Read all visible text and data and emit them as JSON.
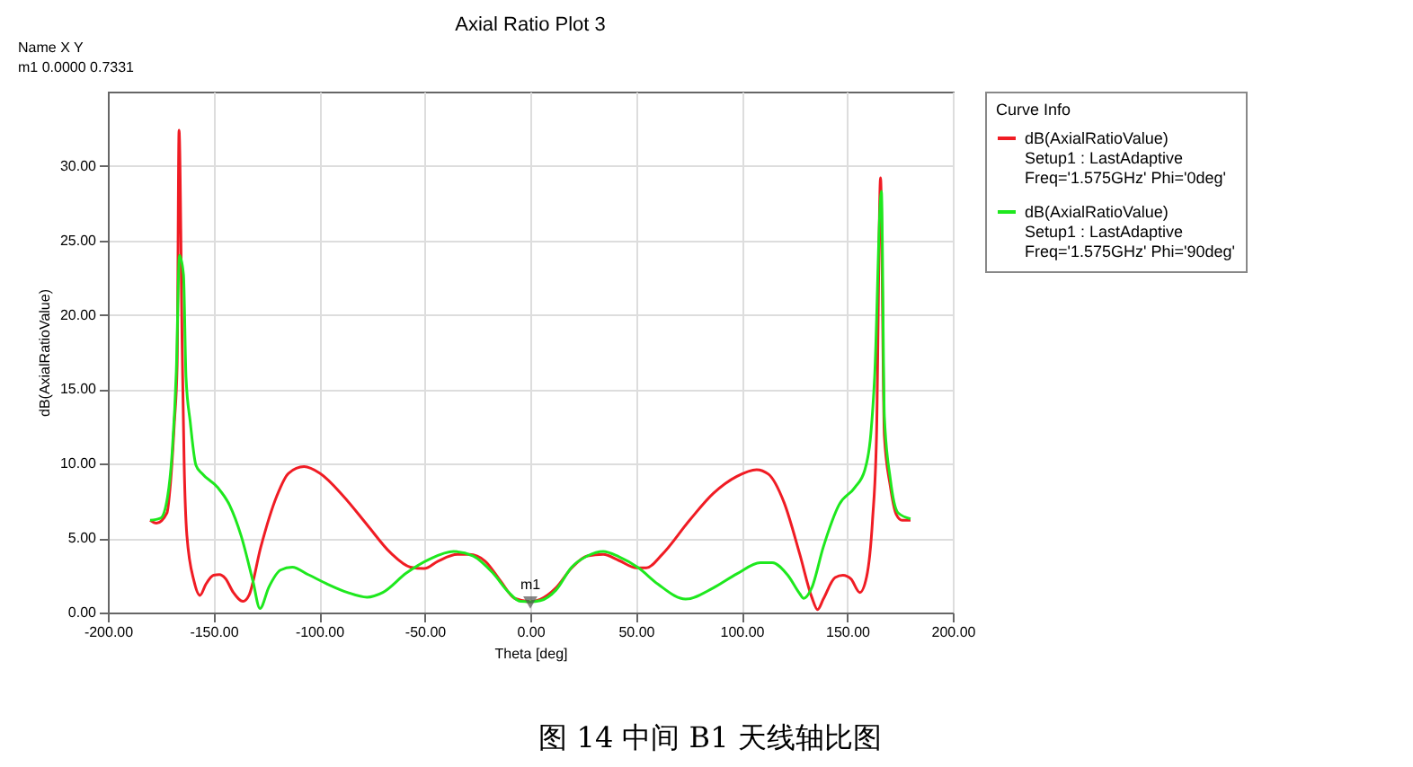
{
  "chart_data": {
    "type": "line",
    "title": "Axial Ratio Plot 3",
    "xlabel": "Theta [deg]",
    "ylabel": "dB(AxialRatioValue)",
    "xlim": [
      -200,
      200
    ],
    "ylim": [
      0,
      35
    ],
    "xticks": [
      {
        "value": -200,
        "label": "-200.00"
      },
      {
        "value": -150,
        "label": "-150.00"
      },
      {
        "value": -100,
        "label": "-100.00"
      },
      {
        "value": -50,
        "label": "-50.00"
      },
      {
        "value": 0,
        "label": "0.00"
      },
      {
        "value": 50,
        "label": "50.00"
      },
      {
        "value": 100,
        "label": "100.00"
      },
      {
        "value": 150,
        "label": "150.00"
      },
      {
        "value": 200,
        "label": "200.00"
      }
    ],
    "yticks": [
      {
        "value": 0,
        "label": "0.00"
      },
      {
        "value": 5,
        "label": "5.00"
      },
      {
        "value": 10,
        "label": "10.00"
      },
      {
        "value": 15,
        "label": "15.00"
      },
      {
        "value": 20,
        "label": "20.00"
      },
      {
        "value": 25,
        "label": "25.00"
      },
      {
        "value": 30,
        "label": "30.00"
      }
    ],
    "grid": true,
    "legend": "top right",
    "legend_title": "Curve Info",
    "marker": "none",
    "line_style": "solid",
    "series": [
      {
        "name": "dB(AxialRatioValue)\nSetup1 : LastAdaptive\nFreq='1.575GHz' Phi='0deg'",
        "color": "#f01c24",
        "x": [
          -180,
          -177,
          -172,
          -170.4,
          -168.5,
          -167.2,
          -166.3,
          -164.8,
          -163.9,
          -162.6,
          -159.2,
          -156.4,
          -153.6,
          -150,
          -147.2,
          -144.4,
          -140.6,
          -136,
          -133.2,
          -127.6,
          -120.1,
          -114.5,
          -107.1,
          -99.6,
          -88.4,
          -77.3,
          -66.1,
          -56.8,
          -50.3,
          -43.7,
          -34.5,
          -28.9,
          -21.4,
          -14,
          -7.4,
          0,
          4.7,
          12.1,
          19.6,
          27,
          34.5,
          41.9,
          50.3,
          54.9,
          62.4,
          75.4,
          86.6,
          97.8,
          107.1,
          112.7,
          120.1,
          127.6,
          133.2,
          136,
          138.7,
          144.3,
          148,
          151.8,
          156,
          159.2,
          162,
          163.9,
          165.8,
          167.6,
          170.4,
          173.2,
          176,
          180
        ],
        "values": [
          6.2,
          6.0,
          6.7,
          8.6,
          12.8,
          16.6,
          32.4,
          17.7,
          10.1,
          5.2,
          2.1,
          1.15,
          1.9,
          2.5,
          2.55,
          2.3,
          1.35,
          0.75,
          1.15,
          4.4,
          7.8,
          9.35,
          9.8,
          9.35,
          7.8,
          5.9,
          4.0,
          3.05,
          2.95,
          3.45,
          3.9,
          3.9,
          3.45,
          2.1,
          0.95,
          0.73,
          0.88,
          1.65,
          3.0,
          3.8,
          3.9,
          3.5,
          3.0,
          3.0,
          3.9,
          6.2,
          8.0,
          9.15,
          9.6,
          9.3,
          7.4,
          3.9,
          1.05,
          0.2,
          0.9,
          2.35,
          2.5,
          2.25,
          1.35,
          2.4,
          6.2,
          11.9,
          29.2,
          11.9,
          8.5,
          6.6,
          6.2,
          6.2
        ]
      },
      {
        "name": "dB(AxialRatioValue)\nSetup1 : LastAdaptive\nFreq='1.575GHz' Phi='90deg'",
        "color": "#1ee81e",
        "x": [
          -180,
          -175,
          -171.7,
          -169.5,
          -167.6,
          -166.1,
          -164.2,
          -163,
          -161,
          -158.3,
          -155.5,
          -148,
          -142.5,
          -136.9,
          -131.3,
          -128,
          -123.8,
          -118.3,
          -112.7,
          -105.2,
          -95.9,
          -86.6,
          -77.3,
          -69.8,
          -58.7,
          -47.5,
          -36.3,
          -27,
          -17.7,
          -10.2,
          -4.7,
          0,
          4.7,
          12.1,
          19.6,
          27,
          34.5,
          41.9,
          51.2,
          60.5,
          73.5,
          86.6,
          97.8,
          108.9,
          114.5,
          121.9,
          127.6,
          129.4,
          133.2,
          138.7,
          146.2,
          153.6,
          158.3,
          161.2,
          163,
          166.2,
          167.6,
          170.4,
          174.1,
          180
        ],
        "values": [
          6.2,
          6.35,
          7.8,
          10.9,
          16.2,
          24.0,
          22.7,
          15.8,
          12.8,
          9.9,
          9.35,
          8.4,
          7.25,
          5.15,
          2.1,
          0.27,
          1.7,
          2.85,
          3.05,
          2.55,
          1.9,
          1.35,
          1.03,
          1.35,
          2.65,
          3.6,
          4.1,
          3.8,
          2.65,
          1.35,
          0.75,
          0.73,
          0.8,
          1.5,
          3.05,
          3.8,
          4.1,
          3.75,
          3.0,
          1.9,
          0.9,
          1.65,
          2.6,
          3.35,
          3.35,
          2.5,
          1.25,
          0.95,
          1.65,
          4.4,
          7.25,
          8.4,
          9.55,
          12.0,
          15.8,
          28.3,
          13.2,
          9.0,
          6.7,
          6.3
        ]
      }
    ],
    "annotations": [
      {
        "text": "m1",
        "x": 0,
        "y": 0.7331
      },
      "Name  X  Y",
      "m1  0.0000  0.7331",
      "图 14 中间 B1 天线轴比图"
    ]
  }
}
